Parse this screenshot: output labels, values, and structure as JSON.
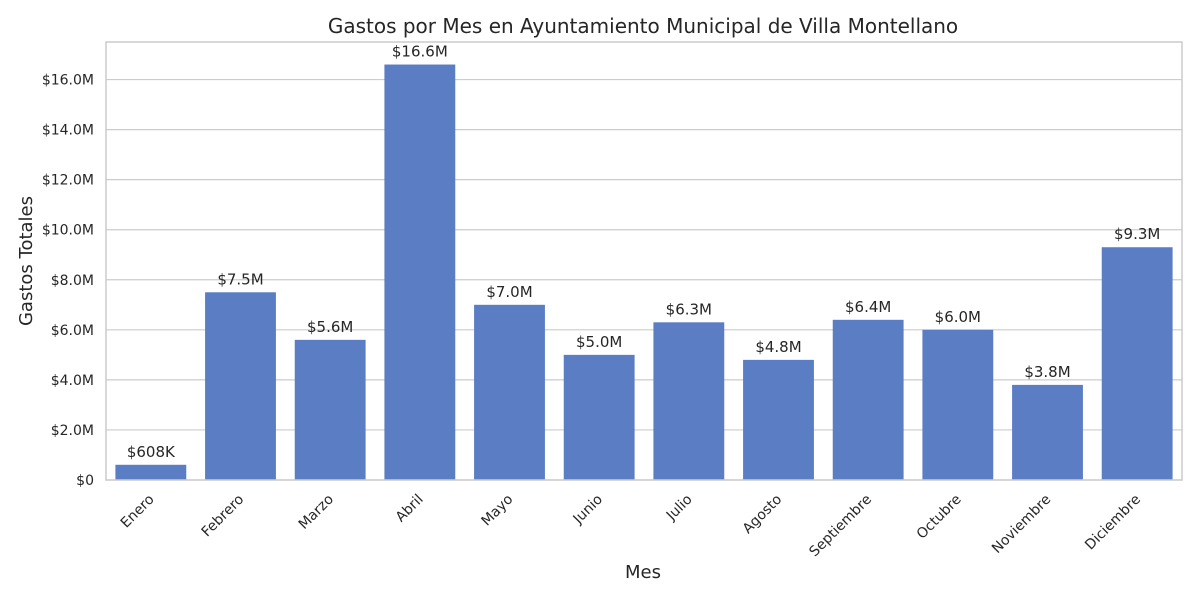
{
  "chart_data": {
    "type": "bar",
    "title": "Gastos por Mes en Ayuntamiento Municipal de Villa Montellano",
    "xlabel": "Mes",
    "ylabel": "Gastos Totales",
    "categories": [
      "Enero",
      "Febrero",
      "Marzo",
      "Abril",
      "Mayo",
      "Junio",
      "Julio",
      "Agosto",
      "Septiembre",
      "Octubre",
      "Noviembre",
      "Diciembre"
    ],
    "values": [
      608000,
      7500000,
      5600000,
      16600000,
      7000000,
      5000000,
      6300000,
      4800000,
      6400000,
      6000000,
      3800000,
      9300000
    ],
    "data_labels": [
      "$608K",
      "$7.5M",
      "$5.6M",
      "$16.6M",
      "$7.0M",
      "$5.0M",
      "$6.3M",
      "$4.8M",
      "$6.4M",
      "$6.0M",
      "$3.8M",
      "$9.3M"
    ],
    "ylim": [
      0,
      17500000
    ],
    "yticks": [
      0,
      2000000,
      4000000,
      6000000,
      8000000,
      10000000,
      12000000,
      14000000,
      16000000
    ],
    "ytick_labels": [
      "$0",
      "$2.0M",
      "$4.0M",
      "$6.0M",
      "$8.0M",
      "$10.0M",
      "$12.0M",
      "$14.0M",
      "$16.0M"
    ],
    "grid": true,
    "bar_color": "#5a7dc3",
    "grid_color": "#cccccc",
    "axis_color": "#cccccc"
  }
}
